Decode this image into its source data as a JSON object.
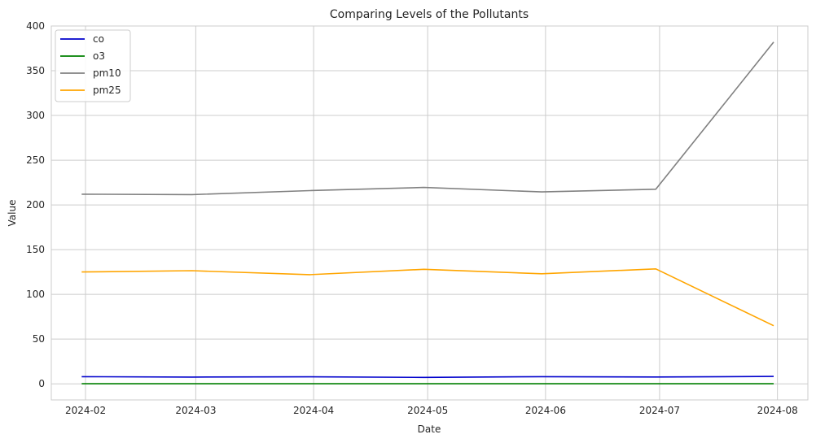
{
  "chart_data": {
    "type": "line",
    "title": "Comparing Levels of the Pollutants",
    "xlabel": "Date",
    "ylabel": "Value",
    "x": [
      "2024-01-31",
      "2024-02-29",
      "2024-03-31",
      "2024-04-30",
      "2024-05-31",
      "2024-06-30",
      "2024-07-31"
    ],
    "xticks": [
      "2024-02",
      "2024-03",
      "2024-04",
      "2024-05",
      "2024-06",
      "2024-07",
      "2024-08"
    ],
    "xlim": [
      "2024-01-23",
      "2024-08-09"
    ],
    "yticks": [
      0,
      50,
      100,
      150,
      200,
      250,
      300,
      350,
      400
    ],
    "ylim": [
      -18,
      400
    ],
    "grid": true,
    "legend": "top-left",
    "series": [
      {
        "name": "co",
        "color": "#0000cc",
        "values": [
          8,
          7.5,
          7.8,
          7.2,
          8,
          7.6,
          8.3
        ]
      },
      {
        "name": "o3",
        "color": "#008000",
        "values": [
          0.1,
          0.1,
          0.1,
          0.1,
          0.1,
          0.1,
          0.1
        ]
      },
      {
        "name": "pm10",
        "color": "#808080",
        "values": [
          212,
          211.5,
          216,
          219.5,
          214.5,
          217.5,
          382
        ]
      },
      {
        "name": "pm25",
        "color": "#ffa500",
        "values": [
          125,
          126.5,
          122,
          128,
          123,
          128.5,
          65
        ]
      }
    ]
  }
}
